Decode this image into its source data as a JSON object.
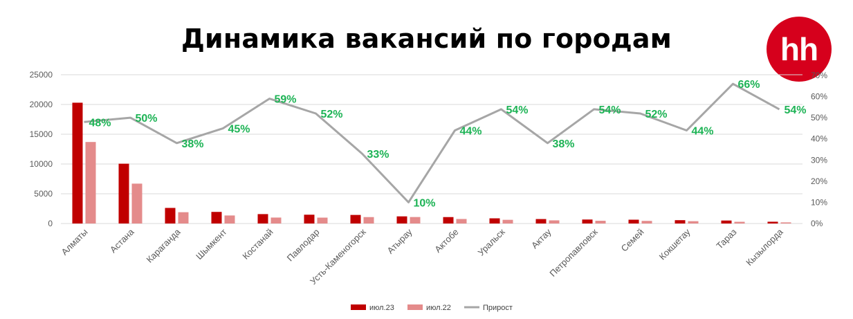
{
  "chart_data": {
    "type": "bar",
    "title": "Динамика вакансий по городам",
    "logo_text": "hh",
    "categories": [
      "Алматы",
      "Астана",
      "Караганда",
      "Шымкент",
      "Костанай",
      "Павлодар",
      "Усть-Каменогорск",
      "Атырау",
      "Актобе",
      "Уральск",
      "Актау",
      "Петропавловск",
      "Семей",
      "Кокшетау",
      "Тараз",
      "Кызылорда"
    ],
    "series": [
      {
        "name": "июл.23",
        "kind": "bar",
        "color": "#c00000",
        "values": [
          20300,
          10050,
          2620,
          1950,
          1580,
          1480,
          1440,
          1200,
          1080,
          870,
          750,
          670,
          640,
          560,
          500,
          300
        ]
      },
      {
        "name": "июл.22",
        "kind": "bar",
        "color": "#e48b8b",
        "values": [
          13700,
          6700,
          1900,
          1350,
          1000,
          990,
          1080,
          1090,
          760,
          620,
          530,
          460,
          440,
          390,
          290,
          190
        ]
      },
      {
        "name": "Прирост",
        "kind": "line",
        "axis": "right",
        "color": "#a6a6a6",
        "values": [
          48,
          50,
          38,
          45,
          59,
          52,
          33,
          10,
          44,
          54,
          38,
          54,
          52,
          44,
          66,
          54
        ]
      }
    ],
    "growth_labels": [
      "48%",
      "50%",
      "38%",
      "45%",
      "59%",
      "52%",
      "33%",
      "10%",
      "44%",
      "54%",
      "38%",
      "54%",
      "52%",
      "44%",
      "66%",
      "54%"
    ],
    "y_left": {
      "min": 0,
      "max": 25000,
      "ticks": [
        "0",
        "5000",
        "10000",
        "15000",
        "20000",
        "25000"
      ]
    },
    "y_right": {
      "min": 0,
      "max": 70,
      "ticks": [
        "0%",
        "10%",
        "20%",
        "30%",
        "40%",
        "50%",
        "60%",
        "70%"
      ]
    },
    "grid": true,
    "legend_position": "bottom",
    "colors": {
      "label_green": "#1db355",
      "grid": "#d9d9d9",
      "logo_red": "#d6001c"
    }
  }
}
